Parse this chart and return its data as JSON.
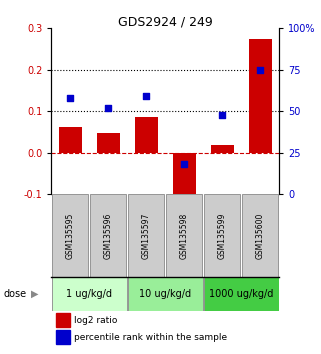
{
  "title": "GDS2924 / 249",
  "samples": [
    "GSM135595",
    "GSM135596",
    "GSM135597",
    "GSM135598",
    "GSM135599",
    "GSM135600"
  ],
  "log2_ratio": [
    0.063,
    0.048,
    0.085,
    -0.115,
    0.018,
    0.275
  ],
  "percentile_rank": [
    58,
    52,
    59,
    18,
    48,
    75
  ],
  "left_ylim": [
    -0.1,
    0.3
  ],
  "right_ylim": [
    0,
    100
  ],
  "left_yticks": [
    -0.1,
    0.0,
    0.1,
    0.2,
    0.3
  ],
  "right_yticks": [
    0,
    25,
    50,
    75,
    100
  ],
  "right_ytick_labels": [
    "0",
    "25",
    "50",
    "75",
    "100%"
  ],
  "hlines_dotted": [
    0.1,
    0.2
  ],
  "hline_dashed": 0.0,
  "bar_color": "#cc0000",
  "dot_color": "#0000cc",
  "dose_groups": [
    {
      "label": "1 ug/kg/d",
      "samples": [
        0,
        1
      ],
      "color": "#ccffcc"
    },
    {
      "label": "10 ug/kg/d",
      "samples": [
        2,
        3
      ],
      "color": "#99ee99"
    },
    {
      "label": "1000 ug/kg/d",
      "samples": [
        4,
        5
      ],
      "color": "#44cc44"
    }
  ],
  "dose_label": "dose",
  "legend_items": [
    {
      "color": "#cc0000",
      "label": "log2 ratio"
    },
    {
      "color": "#0000cc",
      "label": "percentile rank within the sample"
    }
  ],
  "sample_box_color": "#cccccc",
  "bar_width": 0.6
}
